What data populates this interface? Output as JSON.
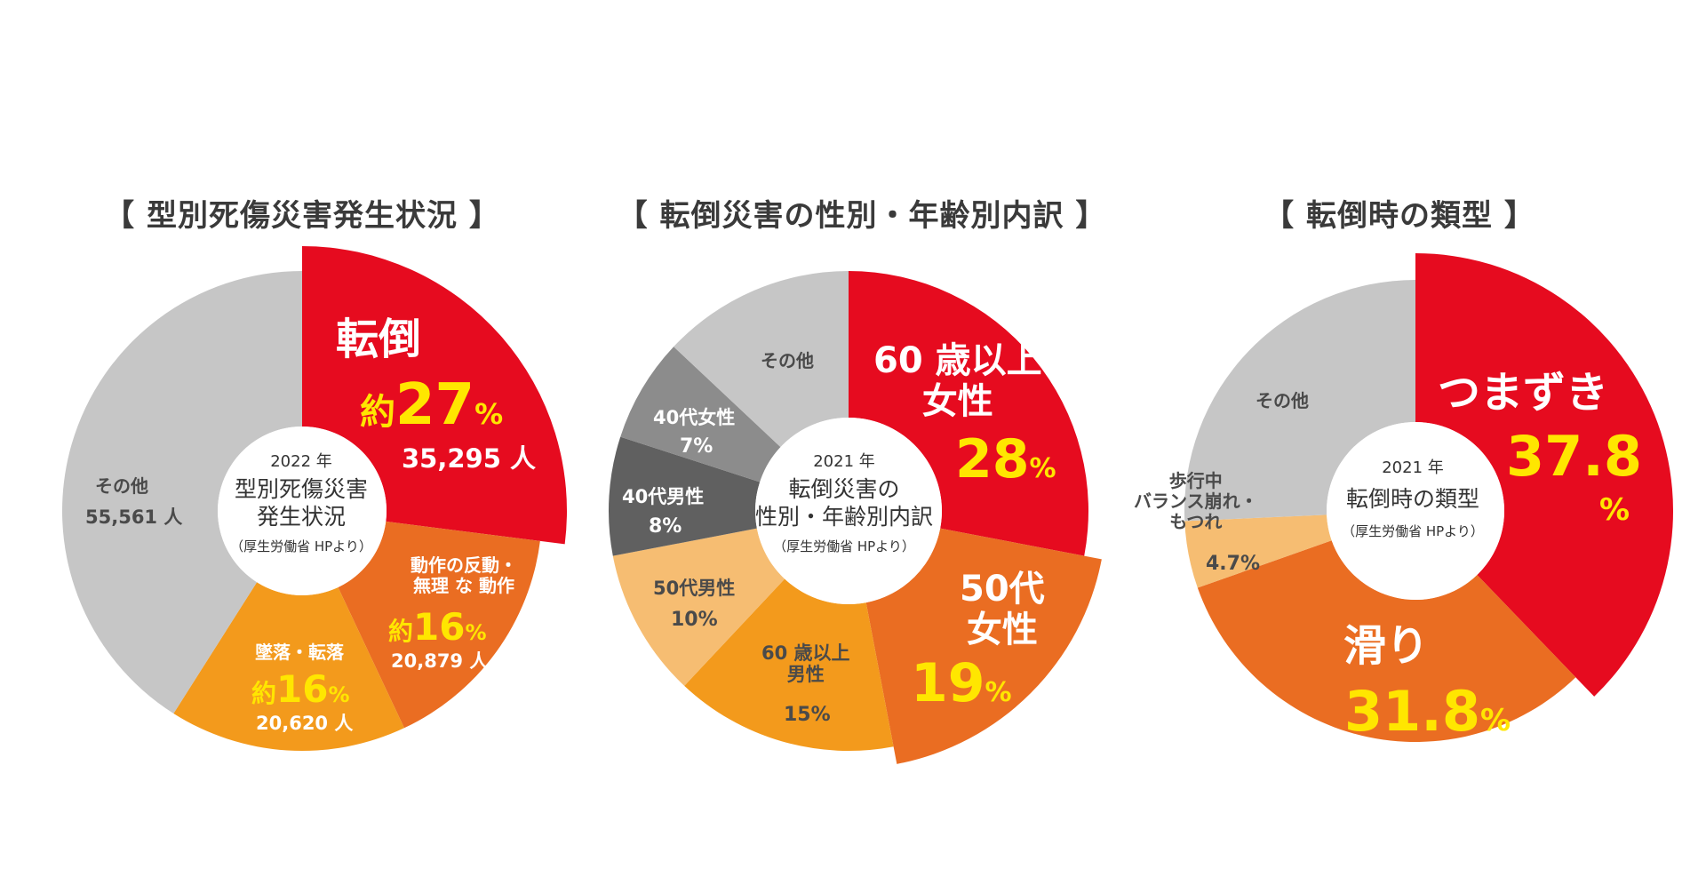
{
  "chart_data": [
    {
      "type": "pie",
      "title": "【 型別死傷災害発生状況 】",
      "center": {
        "year": "2022 年",
        "title1": "型別死傷災害",
        "title2": "発生状況",
        "source": "（厚生労働省 HPより）"
      },
      "slices": [
        {
          "label": "転倒",
          "percent": 27,
          "count": "35,295 人",
          "color": "#e60b1f"
        },
        {
          "label": "動作の反動・無理な動作",
          "percent": 16,
          "count": "20,879 人",
          "color": "#ea6d22"
        },
        {
          "label": "墜落・転落",
          "percent": 16,
          "count": "20,620 人",
          "color": "#f39a1c"
        },
        {
          "label": "その他",
          "percent": 41,
          "count": "55,561 人",
          "color": "#c6c6c6"
        }
      ],
      "labels": {
        "s1_name": "転倒",
        "s1_prefix": "約",
        "s1_value": "27",
        "s1_unit": "%",
        "s1_count": "35,295 人",
        "s2_name1": "動作の反動・",
        "s2_name2": "無理 な 動作",
        "s2_prefix": "約",
        "s2_value": "16",
        "s2_unit": "%",
        "s2_count": "20,879 人",
        "s3_name": "墜落・転落",
        "s3_prefix": "約",
        "s3_value": "16",
        "s3_unit": "%",
        "s3_count": "20,620 人",
        "s4_name": "その他",
        "s4_count": "55,561 人"
      }
    },
    {
      "type": "pie",
      "title": "【 転倒災害の性別・年齢別内訳 】",
      "center": {
        "year": "2021 年",
        "title1": "転倒災害の",
        "title2": "性別・年齢別内訳",
        "source": "（厚生労働省 HPより）"
      },
      "slices": [
        {
          "label": "60歳以上女性",
          "percent": 28,
          "color": "#e60b1f"
        },
        {
          "label": "50代女性",
          "percent": 19,
          "color": "#ea6d22"
        },
        {
          "label": "60歳以上男性",
          "percent": 15,
          "color": "#f39a1c"
        },
        {
          "label": "50代男性",
          "percent": 10,
          "color": "#f6bd72"
        },
        {
          "label": "40代男性",
          "percent": 8,
          "color": "#606060"
        },
        {
          "label": "40代女性",
          "percent": 7,
          "color": "#8c8c8c"
        },
        {
          "label": "その他",
          "percent": 13,
          "color": "#c6c6c6"
        }
      ],
      "labels": {
        "s1_name1": "60 歳以上",
        "s1_name2": "女性",
        "s1_value": "28",
        "s1_unit": "%",
        "s2_name1": "50代",
        "s2_name2": "女性",
        "s2_value": "19",
        "s2_unit": "%",
        "s3_name1": "60 歳以上",
        "s3_name2": "男性",
        "s3_value": "15%",
        "s4_name": "50代男性",
        "s4_value": "10%",
        "s5_name": "40代男性",
        "s5_value": "8%",
        "s6_name": "40代女性",
        "s6_value": "7%",
        "s7_name": "その他"
      }
    },
    {
      "type": "pie",
      "title": "【 転倒時の類型 】",
      "center": {
        "year": "2021 年",
        "title1": "転倒時の類型",
        "source": "（厚生労働省 HPより）"
      },
      "slices": [
        {
          "label": "つまずき",
          "percent": 37.8,
          "color": "#e60b1f"
        },
        {
          "label": "滑り",
          "percent": 31.8,
          "color": "#ea6d22"
        },
        {
          "label": "歩行中バランス崩れ・もつれ",
          "percent": 4.7,
          "color": "#f6bd72"
        },
        {
          "label": "その他",
          "percent": 25.7,
          "color": "#c6c6c6"
        }
      ],
      "labels": {
        "s1_name": "つまずき",
        "s1_value": "37.8",
        "s1_unit": "%",
        "s2_name": "滑り",
        "s2_value": "31.8",
        "s2_unit": "%",
        "s3_name1": "歩行中",
        "s3_name2": "バランス崩れ・",
        "s3_name3": "もつれ",
        "s3_value": "4.7%",
        "s4_name": "その他"
      }
    }
  ]
}
